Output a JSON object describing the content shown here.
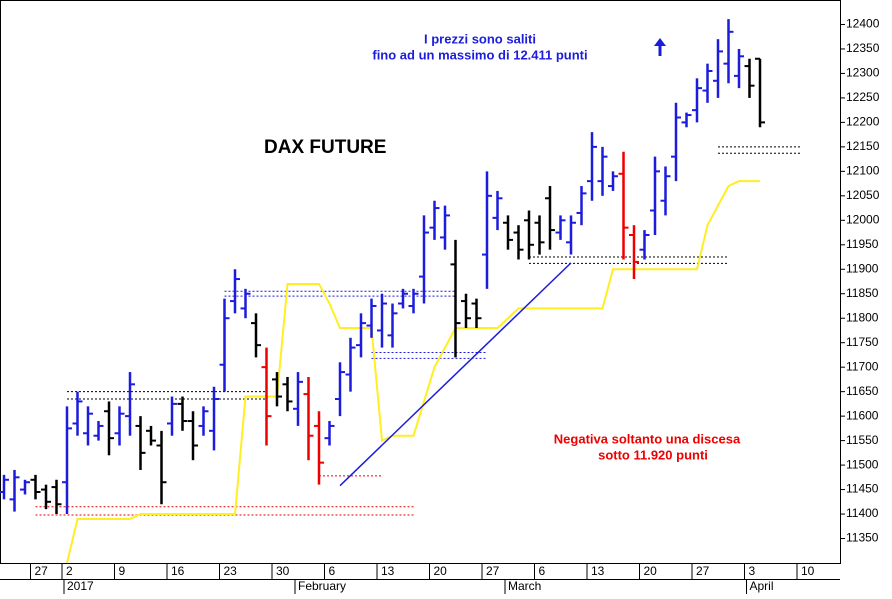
{
  "chart_data": {
    "type": "ohlc",
    "title": "DAX FUTURE",
    "annotations": [
      [
        "I prezzi sono saliti",
        "fino ad un massimo di 12.411 punti"
      ],
      [
        "Negativa soltanto una discesa",
        "sotto 11.920 punti"
      ]
    ],
    "categories": [
      null,
      null,
      null,
      "27",
      null,
      null,
      "2",
      null,
      null,
      null,
      null,
      "9",
      null,
      null,
      null,
      null,
      "16",
      null,
      null,
      null,
      null,
      "23",
      null,
      null,
      null,
      null,
      "30",
      null,
      null,
      null,
      null,
      "6",
      null,
      null,
      null,
      null,
      "13",
      null,
      null,
      null,
      null,
      "20",
      null,
      null,
      null,
      null,
      "27",
      null,
      null,
      null,
      null,
      "6",
      null,
      null,
      null,
      null,
      "13",
      null,
      null,
      null,
      null,
      "20",
      null,
      null,
      null,
      null,
      "27",
      null,
      null,
      null,
      null,
      "3",
      null,
      null,
      null,
      null,
      "10",
      null,
      null,
      null
    ],
    "months": [
      null,
      null,
      null,
      null,
      null,
      null,
      "2017",
      null,
      null,
      null,
      null,
      null,
      null,
      null,
      null,
      null,
      null,
      null,
      null,
      null,
      null,
      null,
      null,
      null,
      null,
      null,
      null,
      null,
      "February",
      null,
      null,
      null,
      null,
      null,
      null,
      null,
      null,
      null,
      null,
      null,
      null,
      null,
      null,
      null,
      null,
      null,
      null,
      null,
      "March",
      null,
      null,
      null,
      null,
      null,
      null,
      null,
      null,
      null,
      null,
      null,
      null,
      null,
      null,
      null,
      null,
      null,
      null,
      null,
      null,
      null,
      null,
      "April",
      null,
      null,
      null,
      null,
      null,
      null,
      null,
      null
    ],
    "open": [
      11445,
      11430,
      11450,
      11470,
      11450,
      11455,
      11465,
      11585,
      11565,
      11560,
      11610,
      11565,
      11600,
      11580,
      11570,
      11540,
      11585,
      11625,
      11590,
      11580,
      11570,
      11705,
      11835,
      11820,
      11790,
      11700,
      11675,
      11665,
      11615,
      11645,
      11580,
      11555,
      11635,
      11685,
      11745,
      11785,
      11775,
      11765,
      11830,
      11825,
      11885,
      11985,
      11965,
      11910,
      11835,
      11830,
      11930,
      12005,
      11995,
      11975,
      12000,
      11995,
      12045,
      11975,
      11955,
      12015,
      12080,
      12080,
      12070,
      12095,
      11970,
      11940,
      12020,
      12040,
      12130,
      12200,
      12225,
      12265,
      12285,
      12320,
      12295,
      12315,
      12330,
      null,
      null,
      null,
      null,
      null,
      null,
      null
    ],
    "high": [
      11480,
      11490,
      11470,
      11480,
      11460,
      11470,
      11620,
      11650,
      11620,
      11590,
      11630,
      11620,
      11690,
      11600,
      11580,
      11570,
      11640,
      11640,
      11610,
      11620,
      11660,
      11840,
      11900,
      11860,
      11810,
      11740,
      11690,
      11680,
      11690,
      11680,
      11610,
      11590,
      11710,
      11760,
      11810,
      11840,
      11850,
      11830,
      11860,
      11860,
      12010,
      12040,
      12030,
      11960,
      11850,
      11840,
      12100,
      12060,
      12010,
      11990,
      12020,
      12010,
      12070,
      12010,
      12010,
      12070,
      12180,
      12150,
      12100,
      12140,
      11990,
      11980,
      12130,
      12110,
      12240,
      12220,
      12290,
      12320,
      12370,
      12411,
      12350,
      12330,
      12330,
      null,
      null,
      null,
      null,
      null,
      null,
      null
    ],
    "low": [
      11430,
      11405,
      11440,
      11430,
      11410,
      11400,
      11400,
      11560,
      11540,
      11550,
      11520,
      11540,
      11560,
      11490,
      11540,
      11420,
      11560,
      11570,
      11510,
      11560,
      11530,
      11650,
      11810,
      11800,
      11720,
      11540,
      11620,
      11610,
      11580,
      11510,
      11460,
      11540,
      11600,
      11650,
      11720,
      11760,
      11740,
      11740,
      11820,
      11810,
      11830,
      11960,
      11940,
      11720,
      11780,
      11780,
      11860,
      11980,
      11940,
      11920,
      11920,
      11930,
      11940,
      11960,
      11930,
      11990,
      12040,
      12050,
      12060,
      11920,
      11880,
      11920,
      11970,
      12010,
      12080,
      12190,
      12200,
      12240,
      12250,
      12280,
      12270,
      12250,
      12190,
      null,
      null,
      null,
      null,
      null,
      null,
      null
    ],
    "close": [
      11470,
      11475,
      11465,
      11445,
      11425,
      11420,
      11575,
      11630,
      11605,
      11580,
      11555,
      11605,
      11665,
      11525,
      11550,
      11465,
      11625,
      11590,
      11540,
      11610,
      11635,
      11800,
      11880,
      11850,
      11745,
      11600,
      11640,
      11630,
      11670,
      11560,
      11505,
      11580,
      11690,
      11740,
      11790,
      11825,
      11830,
      11810,
      11850,
      11850,
      11975,
      12025,
      12010,
      11790,
      11800,
      11800,
      12050,
      12045,
      11960,
      11940,
      11950,
      11955,
      11980,
      12000,
      11995,
      12055,
      12150,
      12130,
      12090,
      11985,
      11915,
      11970,
      12100,
      12090,
      12210,
      12215,
      12270,
      12305,
      12345,
      12385,
      12335,
      12275,
      12200,
      null,
      null,
      null,
      null,
      null,
      null,
      null
    ],
    "colors": [
      "#1c1cdc",
      "#1c1cdc",
      "#1c1cdc",
      "#000000",
      "#000000",
      "#000000",
      "#1c1cdc",
      "#1c1cdc",
      "#1c1cdc",
      "#1c1cdc",
      "#000000",
      "#1c1cdc",
      "#1c1cdc",
      "#000000",
      "#000000",
      "#000000",
      "#1c1cdc",
      "#000000",
      "#000000",
      "#1c1cdc",
      "#1c1cdc",
      "#1c1cdc",
      "#1c1cdc",
      "#1c1cdc",
      "#000000",
      "#ee0000",
      "#000000",
      "#000000",
      "#1c1cdc",
      "#ee0000",
      "#ee0000",
      "#1c1cdc",
      "#1c1cdc",
      "#1c1cdc",
      "#1c1cdc",
      "#1c1cdc",
      "#1c1cdc",
      "#1c1cdc",
      "#1c1cdc",
      "#1c1cdc",
      "#1c1cdc",
      "#1c1cdc",
      "#1c1cdc",
      "#000000",
      "#000000",
      "#000000",
      "#1c1cdc",
      "#1c1cdc",
      "#000000",
      "#000000",
      "#000000",
      "#000000",
      "#000000",
      "#1c1cdc",
      "#1c1cdc",
      "#1c1cdc",
      "#1c1cdc",
      "#1c1cdc",
      "#1c1cdc",
      "#ee0000",
      "#ee0000",
      "#1c1cdc",
      "#1c1cdc",
      "#1c1cdc",
      "#1c1cdc",
      "#1c1cdc",
      "#1c1cdc",
      "#1c1cdc",
      "#1c1cdc",
      "#1c1cdc",
      "#1c1cdc",
      "#000000",
      "#000000",
      null,
      null,
      null,
      null,
      null,
      null,
      null
    ],
    "indicator": {
      "color": "#ffee22",
      "values": [
        null,
        null,
        null,
        null,
        null,
        null,
        11300,
        11390,
        11390,
        11390,
        11390,
        11390,
        11390,
        11400,
        11400,
        11400,
        11400,
        11400,
        11400,
        11400,
        11400,
        11400,
        11400,
        11640,
        11640,
        11640,
        11640,
        11870,
        11870,
        11870,
        11870,
        11830,
        11780,
        11780,
        11780,
        11780,
        11550,
        11560,
        11560,
        11560,
        11630,
        11700,
        11740,
        11780,
        11780,
        11780,
        11780,
        11780,
        11800,
        11820,
        11820,
        11820,
        11820,
        11820,
        11820,
        11820,
        11820,
        11820,
        11900,
        11900,
        11900,
        11900,
        11900,
        11900,
        11900,
        11900,
        11900,
        11990,
        12030,
        12070,
        12080,
        12080,
        12080,
        null,
        null,
        null,
        null,
        null,
        null,
        null
      ]
    },
    "levels": [
      {
        "from": 6,
        "to": 25,
        "values": [
          11650,
          11635
        ],
        "color": "#000000"
      },
      {
        "from": 3,
        "to": 39,
        "values": [
          11415,
          11398
        ],
        "color": "#ee0000"
      },
      {
        "from": 21,
        "to": 43,
        "values": [
          11855,
          11845
        ],
        "color": "#1c1cdc"
      },
      {
        "from": 35,
        "to": 46,
        "values": [
          11730,
          11718
        ],
        "color": "#1c1cdc"
      },
      {
        "from": 30,
        "to": 36,
        "values": [
          11478
        ],
        "color": "#ee0000"
      },
      {
        "from": 50,
        "to": 69,
        "values": [
          11925,
          11912
        ],
        "color": "#000000"
      },
      {
        "from": 68,
        "to": 76,
        "values": [
          12150,
          12137
        ],
        "color": "#000000"
      }
    ],
    "trendline": {
      "from": [
        32,
        11458
      ],
      "to": [
        54,
        11913
      ],
      "color": "#1c1cdc"
    },
    "ylim": [
      11300,
      12450
    ],
    "yticks": [
      11350,
      11400,
      11450,
      11500,
      11550,
      11600,
      11650,
      11700,
      11750,
      11800,
      11850,
      11900,
      11950,
      12000,
      12050,
      12100,
      12150,
      12200,
      12250,
      12300,
      12350,
      12400
    ]
  }
}
